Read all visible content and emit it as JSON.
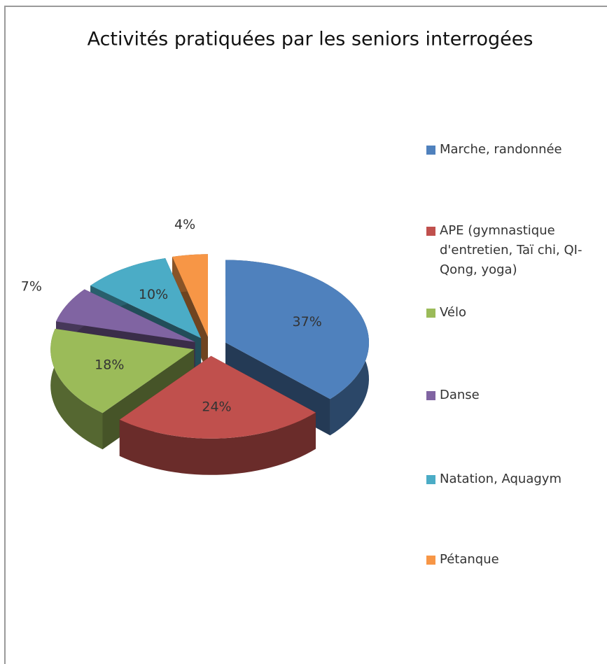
{
  "chart_data": {
    "type": "pie3d",
    "title": "Activités pratiquées par les seniors interrogées",
    "categories": [
      "Marche, randonnée",
      "APE (gymnastique d'entretien, Taï chi, QI-Qong, yoga)",
      "Vélo",
      "Danse",
      "Natation, Aquagym",
      "Pétanque"
    ],
    "values": [
      37,
      24,
      18,
      7,
      10,
      4
    ],
    "value_labels": [
      "37%",
      "24%",
      "18%",
      "7%",
      "10%",
      "4%"
    ],
    "colors": [
      "#4f81bd",
      "#c0504d",
      "#9bbb59",
      "#8064a2",
      "#4bacc6",
      "#f79646"
    ],
    "legend": "right"
  }
}
